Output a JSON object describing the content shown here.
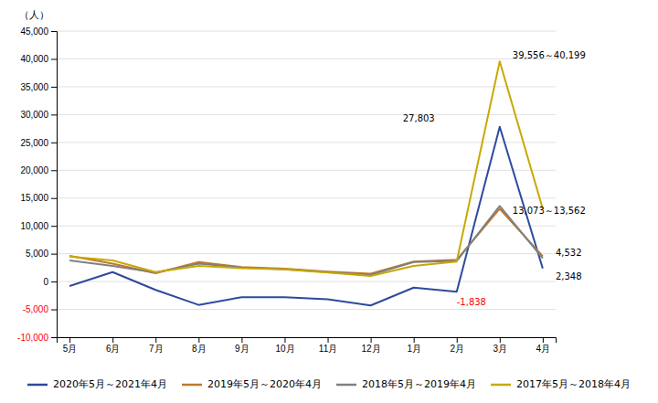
{
  "chart_data": {
    "type": "line",
    "y_label": "（人）",
    "categories": [
      "5月",
      "6月",
      "7月",
      "8月",
      "9月",
      "10月",
      "11月",
      "12月",
      "1月",
      "2月",
      "3月",
      "4月"
    ],
    "series": [
      {
        "name": "2020年5月～2021年4月",
        "color": "#2E4A9E",
        "values": [
          -800,
          1700,
          -1500,
          -4200,
          -2800,
          -2800,
          -3200,
          -4300,
          -1100,
          -1838,
          27803,
          2348
        ]
      },
      {
        "name": "2019年5月～2020年4月",
        "color": "#C0782A",
        "values": [
          4600,
          3200,
          1500,
          3500,
          2600,
          2300,
          1800,
          1400,
          3600,
          3900,
          13073,
          4532
        ]
      },
      {
        "name": "2018年5月～2019年4月",
        "color": "#808080",
        "values": [
          3800,
          2800,
          1600,
          3200,
          2500,
          2200,
          1700,
          1200,
          3500,
          3700,
          13562,
          4200
        ]
      },
      {
        "name": "2017年5月～2018年4月",
        "color": "#C8A800",
        "values": [
          4500,
          3800,
          1700,
          2800,
          2400,
          2200,
          1600,
          1000,
          2800,
          3600,
          39556,
          13073
        ]
      }
    ],
    "ylim": [
      -10000,
      45000
    ],
    "yticks": [
      {
        "value": -10000,
        "label": "-10,000"
      },
      {
        "value": -5000,
        "label": "-5,000"
      },
      0,
      {
        "value": 5000,
        "label": "5,000"
      },
      {
        "value": 10000,
        "label": "10,000"
      },
      {
        "value": 15000,
        "label": "15,000"
      },
      {
        "value": 20000,
        "label": "20,000"
      },
      {
        "value": 25000,
        "label": "25,000"
      },
      {
        "value": 30000,
        "label": "30,000"
      },
      {
        "value": 35000,
        "label": "35,000"
      },
      {
        "value": 40000,
        "label": "40,000"
      },
      {
        "value": 45000,
        "label": "45,000"
      }
    ],
    "grid": true,
    "legend": "bottom",
    "annotations": [
      {
        "text": "27,803",
        "x": "2月",
        "y": 27803,
        "color": "black"
      },
      {
        "text": "-1,838",
        "x": "2月",
        "y": -1838,
        "color": "red"
      },
      {
        "text": "39,556～40,199",
        "x": "3月",
        "y": 39556,
        "color": "black"
      },
      {
        "text": "13,073～13,562",
        "x": "3月",
        "y": 13073,
        "color": "black"
      },
      {
        "text": "4,532",
        "x": "4月",
        "y": 4532,
        "color": "black"
      },
      {
        "text": "2,348",
        "x": "4月",
        "y": 2348,
        "color": "black"
      }
    ]
  }
}
